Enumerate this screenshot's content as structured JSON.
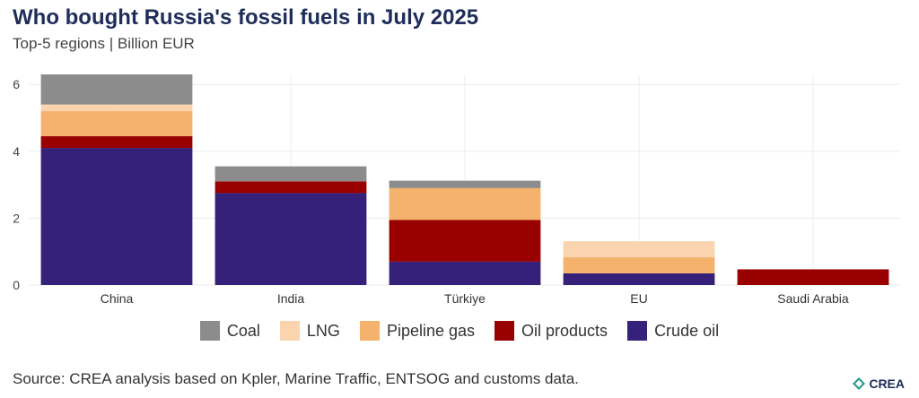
{
  "title": "Who bought Russia's fossil fuels in July 2025",
  "subtitle": "Top-5 regions | Billion EUR",
  "source": "Source: CREA analysis based on Kpler, Marine Traffic, ENTSOG and customs data.",
  "logo": "CREA",
  "chart_data": {
    "type": "bar",
    "stacked": true,
    "categories": [
      "China",
      "India",
      "Türkiye",
      "EU",
      "Saudi Arabia"
    ],
    "series": [
      {
        "name": "Crude oil",
        "color": "#35207a",
        "values": [
          4.1,
          2.75,
          0.7,
          0.35,
          0
        ]
      },
      {
        "name": "Oil products",
        "color": "#990000",
        "values": [
          0.35,
          0.35,
          1.25,
          0,
          0.47
        ]
      },
      {
        "name": "Pipeline gas",
        "color": "#f4b26c",
        "values": [
          0.75,
          0,
          0.95,
          0.48,
          0
        ]
      },
      {
        "name": "LNG",
        "color": "#fad4ae",
        "values": [
          0.2,
          0,
          0,
          0.48,
          0
        ]
      },
      {
        "name": "Coal",
        "color": "#8c8c8c",
        "values": [
          0.9,
          0.45,
          0.22,
          0,
          0
        ]
      }
    ],
    "ylim": [
      0,
      6.3
    ],
    "yticks": [
      "0",
      "2",
      "4",
      "6"
    ],
    "grid": true,
    "legend_position": "bottom",
    "legend_order": [
      "Coal",
      "LNG",
      "Pipeline gas",
      "Oil products",
      "Crude oil"
    ]
  }
}
